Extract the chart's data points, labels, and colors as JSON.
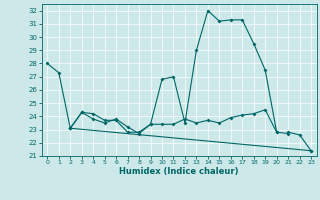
{
  "xlabel": "Humidex (Indice chaleur)",
  "bg_color": "#cce8e8",
  "line_color": "#006666",
  "grid_color": "#ffffff",
  "xlim": [
    -0.5,
    23.5
  ],
  "ylim": [
    21,
    32.5
  ],
  "yticks": [
    21,
    22,
    23,
    24,
    25,
    26,
    27,
    28,
    29,
    30,
    31,
    32
  ],
  "xticks": [
    0,
    1,
    2,
    3,
    4,
    5,
    6,
    7,
    8,
    9,
    10,
    11,
    12,
    13,
    14,
    15,
    16,
    17,
    18,
    19,
    20,
    21,
    22,
    23
  ],
  "series": [
    {
      "x": [
        0,
        1,
        2,
        3,
        4,
        5,
        6,
        7,
        8,
        9,
        10,
        11,
        12,
        13,
        14,
        15,
        16,
        17,
        18,
        19,
        20,
        21
      ],
      "y": [
        28.0,
        27.3,
        23.1,
        24.3,
        24.2,
        23.7,
        23.7,
        22.8,
        22.8,
        23.4,
        26.8,
        27.0,
        23.5,
        29.0,
        32.0,
        31.2,
        31.3,
        31.3,
        29.5,
        27.5,
        22.8,
        22.7
      ]
    },
    {
      "x": [
        2,
        3,
        4,
        5,
        6,
        7,
        8,
        9,
        10,
        11,
        12,
        13,
        14,
        15,
        16,
        17,
        18,
        19,
        20
      ],
      "y": [
        23.1,
        24.3,
        23.8,
        23.5,
        23.8,
        23.2,
        22.7,
        23.4,
        23.4,
        23.4,
        23.8,
        23.5,
        23.7,
        23.5,
        23.9,
        24.1,
        24.2,
        24.5,
        22.8
      ]
    },
    {
      "x": [
        2,
        23
      ],
      "y": [
        23.1,
        21.4
      ]
    },
    {
      "x": [
        21,
        22,
        23
      ],
      "y": [
        22.8,
        22.6,
        21.4
      ]
    }
  ],
  "figsize": [
    3.2,
    2.0
  ],
  "dpi": 100
}
